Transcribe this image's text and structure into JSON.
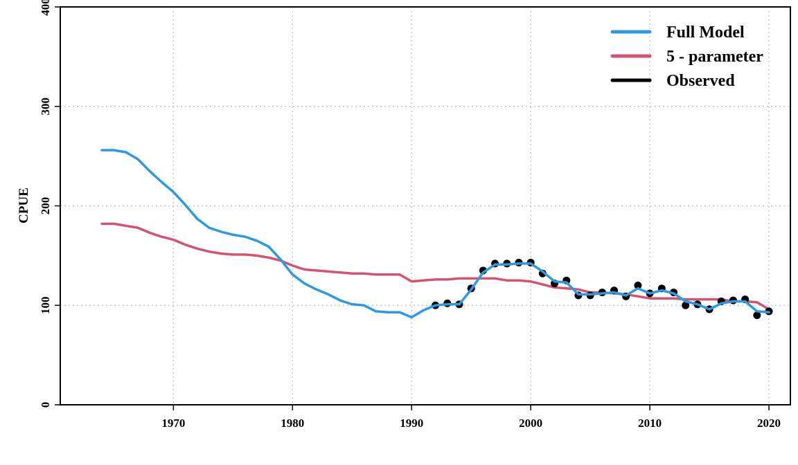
{
  "chart_data": {
    "type": "line",
    "title": "",
    "xlabel": "",
    "ylabel": "CPUE",
    "xlim": [
      1960.5,
      2021.8
    ],
    "ylim": [
      0,
      400
    ],
    "x_ticks": [
      1970,
      1980,
      1990,
      2000,
      2010,
      2020
    ],
    "y_ticks": [
      0,
      100,
      200,
      300,
      400
    ],
    "grid": true,
    "legend_position": "top-right",
    "series": [
      {
        "name": "Full Model",
        "color": "#2B9AE1",
        "style": "line",
        "x": [
          1964,
          1965,
          1966,
          1967,
          1968,
          1969,
          1970,
          1971,
          1972,
          1973,
          1974,
          1975,
          1976,
          1977,
          1978,
          1979,
          1980,
          1981,
          1982,
          1983,
          1984,
          1985,
          1986,
          1987,
          1988,
          1989,
          1990,
          1991,
          1992,
          1993,
          1994,
          1995,
          1996,
          1997,
          1998,
          1999,
          2000,
          2001,
          2002,
          2003,
          2004,
          2005,
          2006,
          2007,
          2008,
          2009,
          2010,
          2011,
          2012,
          2013,
          2014,
          2015,
          2016,
          2017,
          2018,
          2019,
          2020
        ],
        "y": [
          256,
          256,
          254,
          247,
          235,
          224,
          214,
          201,
          187,
          178,
          174,
          171,
          169,
          165,
          159,
          146,
          131,
          122,
          116,
          111,
          105,
          101,
          100,
          94,
          93,
          93,
          88,
          95,
          100,
          101,
          101,
          116,
          133,
          141,
          141,
          142,
          142,
          134,
          124,
          123,
          111,
          111,
          112,
          113,
          110,
          117,
          112,
          115,
          112,
          104,
          101,
          96,
          102,
          104,
          104,
          94,
          93
        ]
      },
      {
        "name": "5 - parameter",
        "color": "#D6536D",
        "style": "line",
        "x": [
          1964,
          1965,
          1966,
          1967,
          1968,
          1969,
          1970,
          1971,
          1972,
          1973,
          1974,
          1975,
          1976,
          1977,
          1978,
          1979,
          1980,
          1981,
          1982,
          1983,
          1984,
          1985,
          1986,
          1987,
          1988,
          1989,
          1990,
          1991,
          1992,
          1993,
          1994,
          1995,
          1996,
          1997,
          1998,
          1999,
          2000,
          2001,
          2002,
          2003,
          2004,
          2005,
          2006,
          2007,
          2008,
          2009,
          2010,
          2011,
          2012,
          2013,
          2014,
          2015,
          2016,
          2017,
          2018,
          2019,
          2020
        ],
        "y": [
          182,
          182,
          180,
          178,
          173,
          169,
          166,
          161,
          157,
          154,
          152,
          151,
          151,
          150,
          148,
          145,
          140,
          136,
          135,
          134,
          133,
          132,
          132,
          131,
          131,
          131,
          124,
          125,
          126,
          126,
          127,
          127,
          127,
          127,
          125,
          125,
          124,
          121,
          118,
          117,
          116,
          113,
          113,
          112,
          111,
          109,
          107,
          107,
          107,
          106,
          106,
          106,
          106,
          104,
          104,
          103,
          96
        ]
      },
      {
        "name": "Observed",
        "color": "#000000",
        "style": "points",
        "x": [
          1992,
          1993,
          1994,
          1995,
          1996,
          1997,
          1998,
          1999,
          2000,
          2001,
          2002,
          2003,
          2004,
          2005,
          2006,
          2007,
          2008,
          2009,
          2010,
          2011,
          2012,
          2013,
          2014,
          2015,
          2016,
          2017,
          2018,
          2019,
          2020
        ],
        "y": [
          100,
          102,
          101,
          117,
          135,
          142,
          142,
          143,
          143,
          132,
          122,
          125,
          110,
          110,
          113,
          115,
          109,
          120,
          112,
          117,
          113,
          100,
          101,
          96,
          104,
          105,
          106,
          90,
          94
        ]
      }
    ]
  }
}
